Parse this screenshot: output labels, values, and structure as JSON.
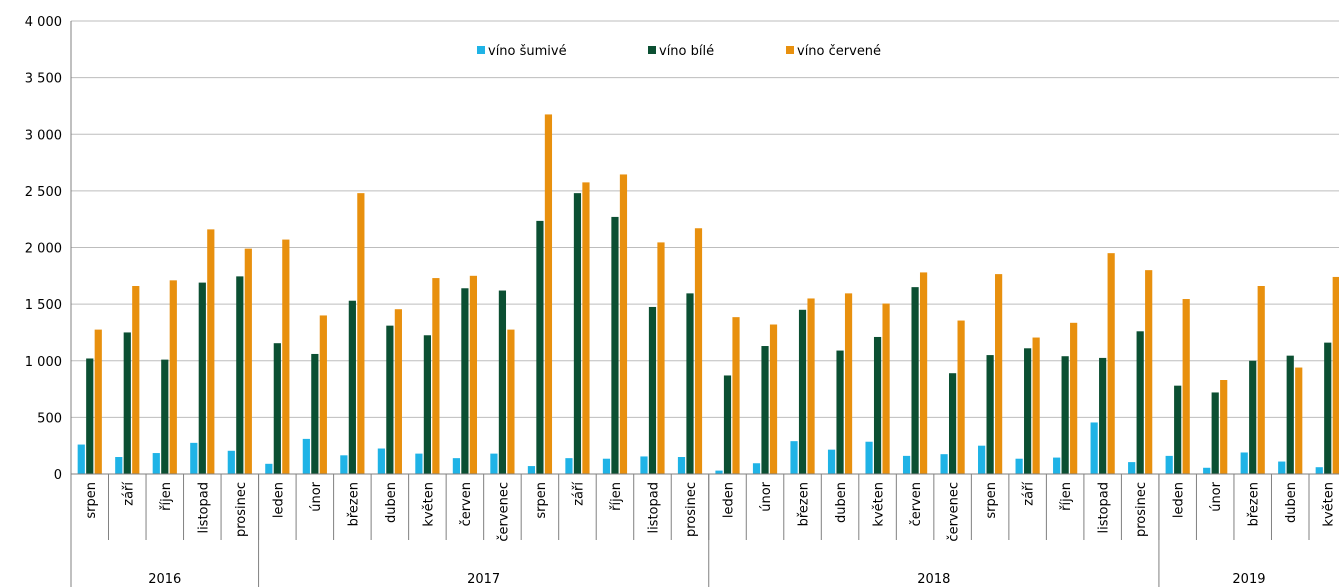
{
  "chart_data": {
    "type": "bar",
    "title": "",
    "xlabel": "",
    "ylabel": "",
    "ylim": [
      0,
      4000
    ],
    "yticks": [
      "0",
      "500",
      "1 000",
      "1 500",
      "2 000",
      "2 500",
      "3 000",
      "3 500",
      "4 000"
    ],
    "grid": true,
    "legend_position": "top-center",
    "categories": [
      "srpen",
      "září",
      "říjen",
      "listopad",
      "prosinec",
      "leden",
      "únor",
      "březen",
      "duben",
      "květen",
      "červen",
      "červenec",
      "srpen",
      "září",
      "říjen",
      "listopad",
      "prosinec",
      "leden",
      "únor",
      "březen",
      "duben",
      "květen",
      "červen",
      "červenec",
      "srpen",
      "září",
      "říjen",
      "listopad",
      "prosinec",
      "leden",
      "únor",
      "březen",
      "duben",
      "květen"
    ],
    "years": [
      {
        "label": "2016",
        "span": 5
      },
      {
        "label": "2017",
        "span": 12
      },
      {
        "label": "2018",
        "span": 12
      },
      {
        "label": "2019",
        "span": 5
      }
    ],
    "series": [
      {
        "name": "víno šumivé",
        "color": "#1FB3E6",
        "values": [
          260,
          150,
          185,
          275,
          205,
          90,
          310,
          165,
          225,
          180,
          140,
          180,
          70,
          140,
          135,
          155,
          150,
          30,
          95,
          290,
          215,
          285,
          160,
          175,
          250,
          135,
          145,
          455,
          105,
          160,
          55,
          190,
          110,
          60
        ]
      },
      {
        "name": "víno bílé",
        "color": "#0B4F32",
        "values": [
          1020,
          1250,
          1010,
          1690,
          1745,
          1155,
          1060,
          1530,
          1310,
          1225,
          1640,
          1620,
          2235,
          2480,
          2270,
          1475,
          1595,
          870,
          1130,
          1450,
          1090,
          1210,
          1650,
          890,
          1050,
          1110,
          1040,
          1025,
          1260,
          780,
          720,
          1000,
          1045,
          1160
        ]
      },
      {
        "name": "víno červené",
        "color": "#E8900E",
        "values": [
          1275,
          1660,
          1710,
          2160,
          1990,
          2070,
          1400,
          2480,
          1455,
          1730,
          1750,
          1275,
          3175,
          2575,
          2645,
          2045,
          2170,
          1385,
          1320,
          1550,
          1595,
          1505,
          1780,
          1355,
          1765,
          1205,
          1335,
          1950,
          1800,
          1545,
          830,
          1660,
          940,
          1740
        ]
      }
    ]
  }
}
